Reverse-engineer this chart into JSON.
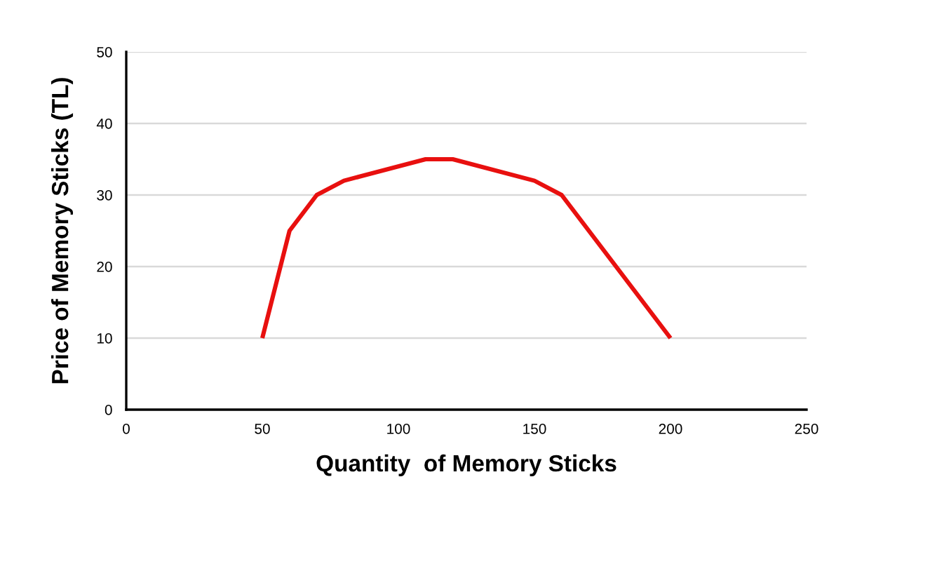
{
  "chart_data": {
    "type": "line",
    "xlabel": "Quantity  of Memory Sticks",
    "ylabel": "Price of Memory Sticks (TL)",
    "series": [
      {
        "color": "#e8100f",
        "x": [
          50,
          60,
          70,
          80,
          110,
          120,
          150,
          160,
          170,
          200
        ],
        "values": [
          10,
          25,
          30,
          32,
          35,
          35,
          32,
          30,
          25,
          10
        ]
      }
    ],
    "xlim": [
      0,
      250
    ],
    "xticks": [
      0,
      50,
      100,
      150,
      200,
      250
    ],
    "ylim": [
      0,
      50
    ],
    "yticks": [
      0,
      10,
      20,
      30,
      40,
      50
    ],
    "grid": "y",
    "marker": "none",
    "line_style": "solid"
  }
}
